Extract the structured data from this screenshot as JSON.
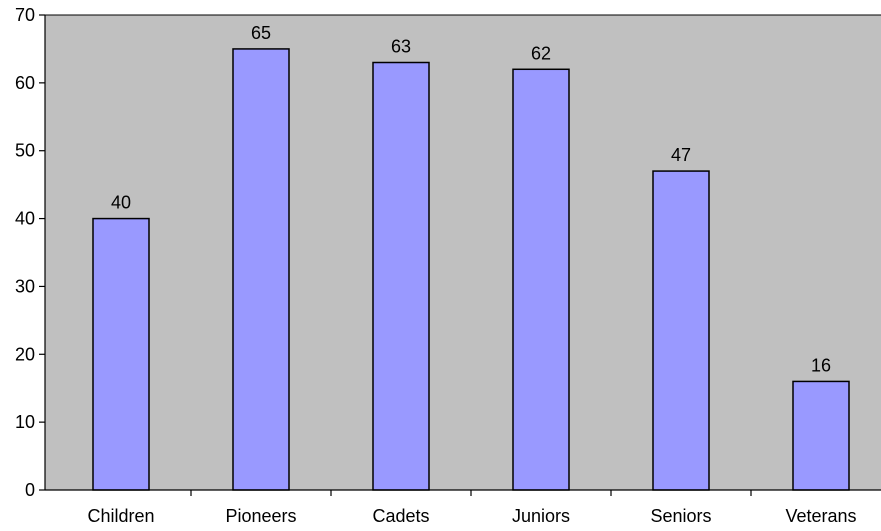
{
  "chart_data": {
    "type": "bar",
    "categories": [
      "Children",
      "Pioneers",
      "Cadets",
      "Juniors",
      "Seniors",
      "Veterans"
    ],
    "values": [
      40,
      65,
      63,
      62,
      47,
      16
    ],
    "data_labels": [
      "40",
      "65",
      "63",
      "62",
      "47",
      "16"
    ],
    "y_ticks": [
      "0",
      "10",
      "20",
      "30",
      "40",
      "50",
      "60",
      "70"
    ],
    "ylim": [
      0,
      70
    ],
    "grid": false,
    "legend": "none",
    "colors": {
      "bar_fill": "#9999ff",
      "bar_stroke": "#000000",
      "plot_background": "#c0c0c0",
      "axis": "#000000"
    }
  }
}
